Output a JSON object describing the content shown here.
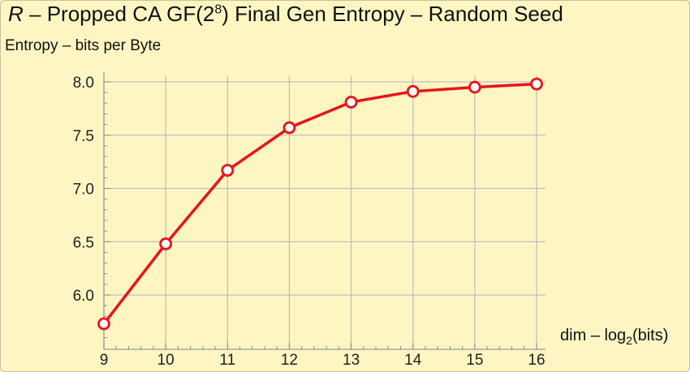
{
  "chart_data": {
    "type": "line",
    "title": {
      "italic_prefix": "R",
      "pre_sup": " – Propped CA GF(2",
      "sup": "8",
      "post_sup": ") Final Gen Entropy – Random Seed"
    },
    "ylabel": "Entropy – bits per Byte",
    "xlabel": {
      "pre_sub": "dim – log",
      "sub": "2",
      "post_sub": "(bits)"
    },
    "x": [
      9,
      10,
      11,
      12,
      13,
      14,
      15,
      16
    ],
    "series": [
      {
        "values": [
          5.73,
          6.48,
          7.17,
          7.57,
          7.81,
          7.91,
          7.95,
          7.98
        ]
      }
    ],
    "xlim": [
      9,
      16
    ],
    "ylim": [
      5.6,
      8.06
    ],
    "xticks": [
      9,
      10,
      11,
      12,
      13,
      14,
      15,
      16
    ],
    "yticks": [
      "6.0",
      "6.5",
      "7.0",
      "7.5",
      "8.0"
    ],
    "grid": true,
    "line_color": "#e8141b",
    "marker": "open-circle",
    "background_color": "#fdf6c3",
    "grid_color": "#bfbfbf"
  }
}
